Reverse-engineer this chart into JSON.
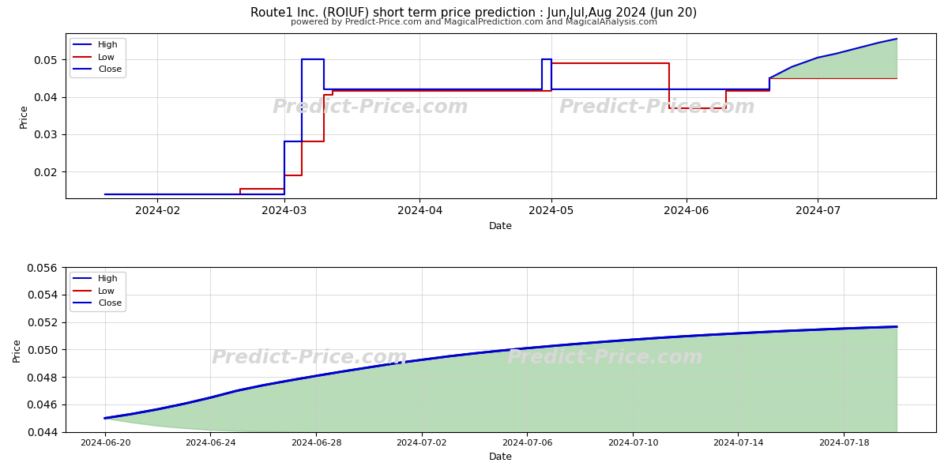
{
  "title": "Route1 Inc. (ROIUF) short term price prediction : Jun,Jul,Aug 2024 (Jun 20)",
  "subtitle": "powered by Predict-Price.com and MagicalPrediction.com and MagicalAnalysis.com",
  "xlabel": "Date",
  "ylabel": "Price",
  "watermark": "Predict-Price.com",
  "upper_high_dates": [
    "2024-01-20",
    "2024-02-01",
    "2024-02-20",
    "2024-02-25",
    "2024-03-01",
    "2024-03-04",
    "2024-03-05",
    "2024-03-06",
    "2024-03-10",
    "2024-03-12",
    "2024-03-20",
    "2024-03-25",
    "2024-04-01",
    "2024-04-15",
    "2024-04-20",
    "2024-04-28",
    "2024-04-29",
    "2024-04-30",
    "2024-05-01",
    "2024-05-10",
    "2024-05-15",
    "2024-05-20",
    "2024-05-28",
    "2024-06-01",
    "2024-06-05",
    "2024-06-10",
    "2024-06-15",
    "2024-06-20"
  ],
  "upper_high_values": [
    0.014,
    0.014,
    0.014,
    0.014,
    0.028,
    0.028,
    0.05,
    0.05,
    0.042,
    0.042,
    0.042,
    0.042,
    0.042,
    0.042,
    0.042,
    0.042,
    0.05,
    0.05,
    0.042,
    0.042,
    0.042,
    0.042,
    0.042,
    0.042,
    0.042,
    0.042,
    0.042,
    0.045
  ],
  "upper_low_dates": [
    "2024-01-20",
    "2024-02-01",
    "2024-02-20",
    "2024-02-25",
    "2024-03-01",
    "2024-03-04",
    "2024-03-05",
    "2024-03-06",
    "2024-03-10",
    "2024-03-12",
    "2024-03-20",
    "2024-03-25",
    "2024-04-01",
    "2024-04-10",
    "2024-04-15",
    "2024-04-20",
    "2024-04-28",
    "2024-05-01",
    "2024-05-05",
    "2024-05-10",
    "2024-05-15",
    "2024-05-20",
    "2024-05-25",
    "2024-05-28",
    "2024-06-01",
    "2024-06-05",
    "2024-06-10",
    "2024-06-15",
    "2024-06-20"
  ],
  "upper_low_values": [
    0.014,
    0.014,
    0.0155,
    0.0155,
    0.019,
    0.019,
    0.028,
    0.028,
    0.0405,
    0.0415,
    0.0415,
    0.0415,
    0.0415,
    0.0415,
    0.0415,
    0.0415,
    0.0415,
    0.049,
    0.049,
    0.049,
    0.049,
    0.049,
    0.049,
    0.037,
    0.037,
    0.037,
    0.0415,
    0.0415,
    0.045
  ],
  "upper_close_dates": [
    "2024-01-20",
    "2024-02-01",
    "2024-02-20",
    "2024-02-25",
    "2024-03-01",
    "2024-03-04",
    "2024-03-05",
    "2024-03-06",
    "2024-03-10",
    "2024-03-12",
    "2024-03-20",
    "2024-04-01",
    "2024-04-28",
    "2024-04-29",
    "2024-05-01",
    "2024-05-15",
    "2024-06-01",
    "2024-06-15",
    "2024-06-20"
  ],
  "upper_close_values": [
    0.014,
    0.014,
    0.014,
    0.014,
    0.028,
    0.028,
    0.05,
    0.05,
    0.042,
    0.042,
    0.042,
    0.042,
    0.042,
    0.05,
    0.042,
    0.042,
    0.042,
    0.042,
    0.045
  ],
  "upper_forecast_high_dates": [
    "2024-06-20",
    "2024-06-25",
    "2024-07-01",
    "2024-07-05",
    "2024-07-10",
    "2024-07-15",
    "2024-07-19"
  ],
  "upper_forecast_high_values": [
    0.045,
    0.048,
    0.0505,
    0.0515,
    0.053,
    0.0545,
    0.0555
  ],
  "upper_forecast_low_dates": [
    "2024-06-20",
    "2024-06-25",
    "2024-07-01",
    "2024-07-05",
    "2024-07-10",
    "2024-07-15",
    "2024-07-19"
  ],
  "upper_forecast_low_values": [
    0.045,
    0.045,
    0.045,
    0.045,
    0.045,
    0.045,
    0.045
  ],
  "lower_dates": [
    "2024-06-20",
    "2024-06-21",
    "2024-06-22",
    "2024-06-23",
    "2024-06-24",
    "2024-06-25",
    "2024-06-26",
    "2024-06-27",
    "2024-06-28",
    "2024-06-29",
    "2024-06-30",
    "2024-07-01",
    "2024-07-02",
    "2024-07-03",
    "2024-07-04",
    "2024-07-05",
    "2024-07-06",
    "2024-07-07",
    "2024-07-08",
    "2024-07-09",
    "2024-07-10",
    "2024-07-11",
    "2024-07-12",
    "2024-07-13",
    "2024-07-14",
    "2024-07-15",
    "2024-07-16",
    "2024-07-17",
    "2024-07-18",
    "2024-07-19",
    "2024-07-20"
  ],
  "lower_high_values": [
    0.045,
    0.0453,
    0.04565,
    0.04605,
    0.0465,
    0.047,
    0.0474,
    0.04775,
    0.04808,
    0.0484,
    0.0487,
    0.049,
    0.04925,
    0.0495,
    0.04972,
    0.04992,
    0.0501,
    0.05027,
    0.05043,
    0.05058,
    0.05072,
    0.05085,
    0.05097,
    0.05108,
    0.05118,
    0.05128,
    0.05137,
    0.05145,
    0.05153,
    0.0516,
    0.05166
  ],
  "lower_low_values": [
    0.045,
    0.0447,
    0.04445,
    0.04428,
    0.04415,
    0.04408,
    0.04403,
    0.044,
    0.04398,
    0.04396,
    0.04395,
    0.04394,
    0.04393,
    0.04393,
    0.04393,
    0.04393,
    0.04393,
    0.04393,
    0.04393,
    0.04393,
    0.04393,
    0.04393,
    0.04393,
    0.04393,
    0.04393,
    0.04393,
    0.04393,
    0.04393,
    0.04393,
    0.04393,
    0.04393
  ],
  "lower_close_values": [
    0.045,
    0.0453,
    0.04565,
    0.04605,
    0.0465,
    0.047,
    0.0474,
    0.04775,
    0.04808,
    0.0484,
    0.0487,
    0.049,
    0.04925,
    0.0495,
    0.04972,
    0.04992,
    0.0501,
    0.05027,
    0.05043,
    0.05058,
    0.05072,
    0.05085,
    0.05097,
    0.05108,
    0.05118,
    0.05128,
    0.05137,
    0.05145,
    0.05153,
    0.0516,
    0.05166
  ],
  "high_color": "#0000cc",
  "low_color": "#cc0000",
  "close_color": "#0000cc",
  "fill_color": "#7fbf7f",
  "fill_alpha": 0.55,
  "upper_ylim": [
    0.013,
    0.057
  ],
  "lower_ylim": [
    0.044,
    0.056
  ],
  "bg_color": "#ffffff",
  "grid_color": "#cccccc",
  "watermark_color": "#d8d8d8"
}
